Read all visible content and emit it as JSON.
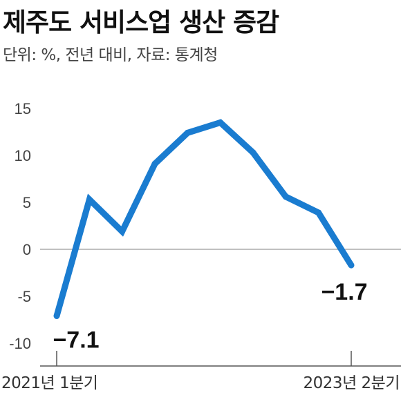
{
  "header": {
    "title": "제주도 서비스업 생산 증감",
    "subtitle": "단위: %, 전년 대비, 자료: 통계청"
  },
  "colors": {
    "line": "#1a7cd0",
    "zero_line": "#9a9a9a",
    "axis": "#555555"
  },
  "chart_data": {
    "type": "line",
    "title": "제주도 서비스업 생산 증감",
    "subtitle": "단위: %, 전년 대비, 자료: 통계청",
    "ylim": [
      -10,
      15
    ],
    "yticks": [
      "15",
      "10",
      "5",
      "0",
      "-5",
      "-10"
    ],
    "xtick_labels": {
      "first": "2021년 1분기",
      "last": "2023년 2분기"
    },
    "x": [
      "2021-Q1",
      "2021-Q2",
      "2021-Q3",
      "2021-Q4",
      "2022-Q1",
      "2022-Q2",
      "2022-Q3",
      "2022-Q4",
      "2023-Q1",
      "2023-Q2"
    ],
    "values": [
      -7.1,
      5.3,
      1.9,
      9.1,
      12.4,
      13.5,
      10.3,
      5.6,
      3.9,
      -1.7
    ],
    "data_labels": {
      "first": "−7.1",
      "last": "−1.7"
    },
    "grid": false
  }
}
